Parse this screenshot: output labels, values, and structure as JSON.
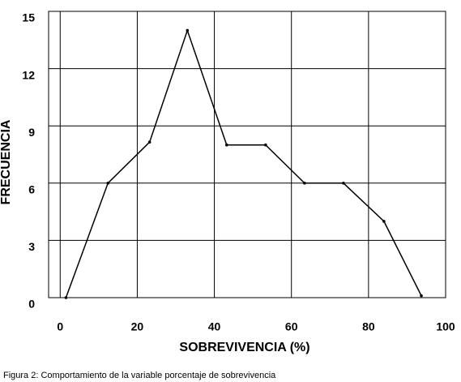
{
  "chart_data": {
    "type": "line",
    "x_label": "SOBREVIVENCIA (%)",
    "y_label": "FRECUENCIA",
    "caption": "Figura 2: Comportamiento de la variable porcentaje de sobrevivencia",
    "x": [
      1.5,
      12.4,
      23.2,
      33,
      43.2,
      53.3,
      63.4,
      73.5,
      84,
      93.7
    ],
    "series": [
      {
        "color": "#000000",
        "values": [
          0,
          6,
          8.15,
          14,
          8,
          8,
          6,
          6,
          4,
          0.1
        ]
      }
    ],
    "xlim": [
      -3,
      100
    ],
    "xticks": [
      0,
      20,
      40,
      60,
      80,
      100
    ],
    "ylim": [
      0,
      15
    ],
    "yticks": [
      0,
      3,
      6,
      9,
      12,
      15
    ],
    "grid": true
  }
}
